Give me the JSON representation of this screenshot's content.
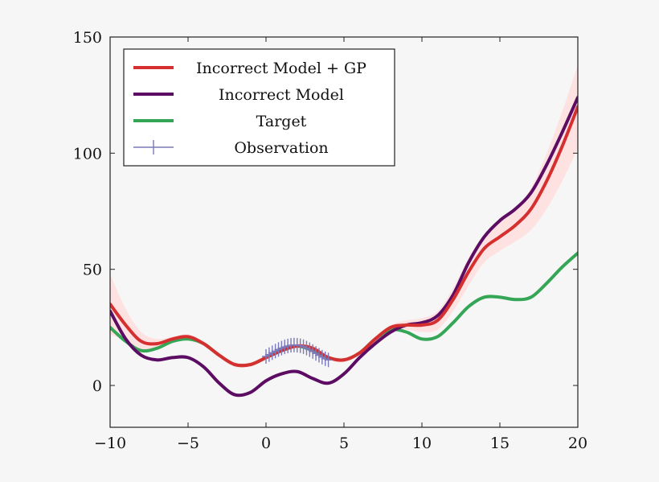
{
  "chart_data": {
    "type": "line",
    "title": "",
    "xlabel": "",
    "ylabel": "",
    "xlim": [
      -10,
      20
    ],
    "ylim": [
      -18,
      150
    ],
    "xticks": [
      -10,
      -5,
      0,
      5,
      10,
      15,
      20
    ],
    "xtick_labels": [
      "−10",
      "−5",
      "0",
      "5",
      "10",
      "15",
      "20"
    ],
    "yticks": [
      0,
      50,
      100,
      150
    ],
    "ytick_labels": [
      "0",
      "50",
      "100",
      "150"
    ],
    "grid": false,
    "legend_position": "top-left",
    "series": [
      {
        "name": "Incorrect Model + GP",
        "color": "#d62f2f",
        "band_color": "#ffdede",
        "x": [
          -10,
          -9,
          -8,
          -7,
          -6,
          -5,
          -4,
          -3,
          -2,
          -1,
          0,
          1,
          2,
          3,
          4,
          5,
          6,
          7,
          8,
          9,
          10,
          11,
          12,
          13,
          14,
          15,
          16,
          17,
          18,
          19,
          20
        ],
        "values": [
          35,
          26,
          19,
          18,
          20,
          21,
          18,
          13,
          9,
          9,
          12,
          15,
          17,
          16,
          12,
          11,
          14,
          20,
          25,
          26,
          26,
          28,
          37,
          49,
          59,
          64,
          69,
          76,
          88,
          103,
          120
        ],
        "upper": [
          48,
          33,
          23,
          20,
          21,
          22,
          19,
          14,
          10,
          10,
          13,
          16,
          18,
          17,
          13,
          12,
          15,
          21,
          26,
          28,
          29,
          32,
          42,
          55,
          65,
          70,
          76,
          85,
          100,
          118,
          138
        ],
        "lower": [
          22,
          19,
          15,
          16,
          19,
          20,
          17,
          12,
          8,
          8,
          11,
          14,
          16,
          15,
          11,
          10,
          13,
          19,
          24,
          24,
          23,
          24,
          32,
          43,
          53,
          58,
          62,
          67,
          76,
          88,
          102
        ]
      },
      {
        "name": "Incorrect Model",
        "color": "#5c0d63",
        "x": [
          -10,
          -9,
          -8,
          -7,
          -6,
          -5,
          -4,
          -3,
          -2,
          -1,
          0,
          1,
          2,
          3,
          4,
          5,
          6,
          7,
          8,
          9,
          10,
          11,
          12,
          13,
          14,
          15,
          16,
          17,
          18,
          19,
          20
        ],
        "values": [
          32,
          20,
          13,
          11,
          12,
          12,
          8,
          1,
          -4,
          -3,
          2,
          5,
          6,
          3,
          1,
          5,
          12,
          18,
          23,
          26,
          27,
          30,
          39,
          53,
          64,
          71,
          76,
          83,
          95,
          109,
          124
        ]
      },
      {
        "name": "Target",
        "color": "#34a655",
        "x": [
          -10,
          -9,
          -8,
          -7,
          -6,
          -5,
          -4,
          -3,
          -2,
          -1,
          0,
          1,
          2,
          3,
          4,
          5,
          6,
          7,
          8,
          9,
          10,
          11,
          12,
          13,
          14,
          15,
          16,
          17,
          18,
          19,
          20
        ],
        "values": [
          25,
          19,
          15,
          16,
          19,
          20,
          18,
          13,
          9,
          9,
          12,
          15,
          17,
          15,
          12,
          11,
          14,
          20,
          24,
          23,
          20,
          21,
          27,
          34,
          38,
          38,
          37,
          38,
          44,
          51,
          57
        ]
      },
      {
        "name": "Observation",
        "color": "#7a78b8",
        "marker": "+",
        "x": [
          0,
          0.2,
          0.4,
          0.6,
          0.8,
          1,
          1.2,
          1.4,
          1.6,
          1.8,
          2,
          2.2,
          2.4,
          2.6,
          2.8,
          3,
          3.2,
          3.4,
          3.6,
          3.8,
          4
        ],
        "values": [
          12.5,
          13.3,
          14.1,
          14.8,
          15.5,
          16.1,
          16.6,
          17.0,
          17.3,
          17.4,
          17.3,
          17.1,
          16.7,
          16.1,
          15.4,
          14.6,
          13.8,
          13.0,
          12.2,
          11.5,
          11.0
        ]
      }
    ]
  }
}
